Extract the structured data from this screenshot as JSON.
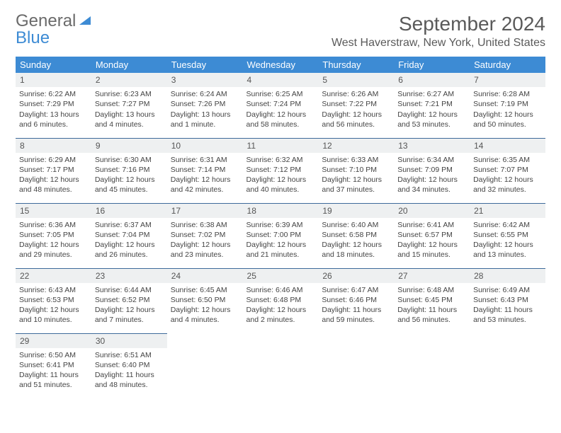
{
  "logo": {
    "word1": "General",
    "word2": "Blue"
  },
  "title": "September 2024",
  "location": "West Haverstraw, New York, United States",
  "colors": {
    "header_bg": "#3d8bd4",
    "header_text": "#ffffff",
    "daynum_bg": "#eef0f1",
    "row_border": "#3d6a9a",
    "body_text": "#444444",
    "title_text": "#5a5a5a",
    "logo_gray": "#6a6a6a",
    "logo_blue": "#3d8bd4"
  },
  "weekdays": [
    "Sunday",
    "Monday",
    "Tuesday",
    "Wednesday",
    "Thursday",
    "Friday",
    "Saturday"
  ],
  "days": [
    {
      "n": "1",
      "sr": "6:22 AM",
      "ss": "7:29 PM",
      "dl": "13 hours and 6 minutes."
    },
    {
      "n": "2",
      "sr": "6:23 AM",
      "ss": "7:27 PM",
      "dl": "13 hours and 4 minutes."
    },
    {
      "n": "3",
      "sr": "6:24 AM",
      "ss": "7:26 PM",
      "dl": "13 hours and 1 minute."
    },
    {
      "n": "4",
      "sr": "6:25 AM",
      "ss": "7:24 PM",
      "dl": "12 hours and 58 minutes."
    },
    {
      "n": "5",
      "sr": "6:26 AM",
      "ss": "7:22 PM",
      "dl": "12 hours and 56 minutes."
    },
    {
      "n": "6",
      "sr": "6:27 AM",
      "ss": "7:21 PM",
      "dl": "12 hours and 53 minutes."
    },
    {
      "n": "7",
      "sr": "6:28 AM",
      "ss": "7:19 PM",
      "dl": "12 hours and 50 minutes."
    },
    {
      "n": "8",
      "sr": "6:29 AM",
      "ss": "7:17 PM",
      "dl": "12 hours and 48 minutes."
    },
    {
      "n": "9",
      "sr": "6:30 AM",
      "ss": "7:16 PM",
      "dl": "12 hours and 45 minutes."
    },
    {
      "n": "10",
      "sr": "6:31 AM",
      "ss": "7:14 PM",
      "dl": "12 hours and 42 minutes."
    },
    {
      "n": "11",
      "sr": "6:32 AM",
      "ss": "7:12 PM",
      "dl": "12 hours and 40 minutes."
    },
    {
      "n": "12",
      "sr": "6:33 AM",
      "ss": "7:10 PM",
      "dl": "12 hours and 37 minutes."
    },
    {
      "n": "13",
      "sr": "6:34 AM",
      "ss": "7:09 PM",
      "dl": "12 hours and 34 minutes."
    },
    {
      "n": "14",
      "sr": "6:35 AM",
      "ss": "7:07 PM",
      "dl": "12 hours and 32 minutes."
    },
    {
      "n": "15",
      "sr": "6:36 AM",
      "ss": "7:05 PM",
      "dl": "12 hours and 29 minutes."
    },
    {
      "n": "16",
      "sr": "6:37 AM",
      "ss": "7:04 PM",
      "dl": "12 hours and 26 minutes."
    },
    {
      "n": "17",
      "sr": "6:38 AM",
      "ss": "7:02 PM",
      "dl": "12 hours and 23 minutes."
    },
    {
      "n": "18",
      "sr": "6:39 AM",
      "ss": "7:00 PM",
      "dl": "12 hours and 21 minutes."
    },
    {
      "n": "19",
      "sr": "6:40 AM",
      "ss": "6:58 PM",
      "dl": "12 hours and 18 minutes."
    },
    {
      "n": "20",
      "sr": "6:41 AM",
      "ss": "6:57 PM",
      "dl": "12 hours and 15 minutes."
    },
    {
      "n": "21",
      "sr": "6:42 AM",
      "ss": "6:55 PM",
      "dl": "12 hours and 13 minutes."
    },
    {
      "n": "22",
      "sr": "6:43 AM",
      "ss": "6:53 PM",
      "dl": "12 hours and 10 minutes."
    },
    {
      "n": "23",
      "sr": "6:44 AM",
      "ss": "6:52 PM",
      "dl": "12 hours and 7 minutes."
    },
    {
      "n": "24",
      "sr": "6:45 AM",
      "ss": "6:50 PM",
      "dl": "12 hours and 4 minutes."
    },
    {
      "n": "25",
      "sr": "6:46 AM",
      "ss": "6:48 PM",
      "dl": "12 hours and 2 minutes."
    },
    {
      "n": "26",
      "sr": "6:47 AM",
      "ss": "6:46 PM",
      "dl": "11 hours and 59 minutes."
    },
    {
      "n": "27",
      "sr": "6:48 AM",
      "ss": "6:45 PM",
      "dl": "11 hours and 56 minutes."
    },
    {
      "n": "28",
      "sr": "6:49 AM",
      "ss": "6:43 PM",
      "dl": "11 hours and 53 minutes."
    },
    {
      "n": "29",
      "sr": "6:50 AM",
      "ss": "6:41 PM",
      "dl": "11 hours and 51 minutes."
    },
    {
      "n": "30",
      "sr": "6:51 AM",
      "ss": "6:40 PM",
      "dl": "11 hours and 48 minutes."
    }
  ],
  "labels": {
    "sunrise": "Sunrise:",
    "sunset": "Sunset:",
    "daylight": "Daylight:"
  }
}
